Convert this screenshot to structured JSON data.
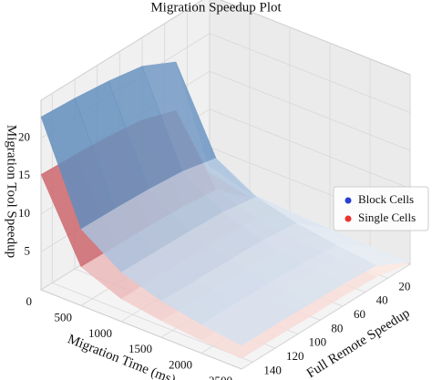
{
  "chart_data": {
    "type": "surface3d",
    "title": "Migration Speedup Plot",
    "x_label": "Migration Time (ms)",
    "y_label": "Full Remote Speedup",
    "z_label": "Migration Tool Speedup",
    "x": [
      0,
      500,
      1000,
      1500,
      2000,
      2500
    ],
    "y": [
      1,
      30,
      60,
      90,
      120,
      150
    ],
    "xlim": [
      0,
      2500
    ],
    "ylim": [
      0,
      150
    ],
    "zlim": [
      0,
      25
    ],
    "xticks": [
      0,
      500,
      1000,
      1500,
      2000,
      2500
    ],
    "yticks": [
      20,
      40,
      60,
      80,
      100,
      120,
      140
    ],
    "zticks": [
      5,
      10,
      15,
      20
    ],
    "grid": true,
    "legend": "right",
    "series": [
      {
        "name": "Single Cells",
        "color": "#e8342c",
        "colormap": [
          "#fff0ea",
          "#b3202c"
        ],
        "z": [
          [
            1.8,
            12.6,
            14.1,
            14.7,
            15.0,
            15.2
          ],
          [
            0.6,
            4.2,
            4.7,
            4.9,
            5.0,
            5.1
          ],
          [
            0.4,
            2.5,
            2.8,
            2.9,
            3.0,
            3.0
          ],
          [
            0.3,
            1.8,
            2.0,
            2.1,
            2.1,
            2.2
          ],
          [
            0.2,
            1.4,
            1.6,
            1.6,
            1.7,
            1.7
          ],
          [
            0.2,
            1.1,
            1.3,
            1.3,
            1.4,
            1.4
          ]
        ]
      },
      {
        "name": "Block Cells",
        "color": "#2a3fd0",
        "colormap": [
          "#f3f8fd",
          "#2a64a4"
        ],
        "z": [
          [
            2.7,
            19.0,
            21.2,
            22.0,
            22.5,
            22.8
          ],
          [
            1.2,
            8.4,
            9.4,
            9.8,
            10.0,
            10.1
          ],
          [
            0.8,
            5.4,
            6.1,
            6.3,
            6.4,
            6.5
          ],
          [
            0.6,
            4.0,
            4.5,
            4.6,
            4.7,
            4.8
          ],
          [
            0.4,
            3.2,
            3.5,
            3.7,
            3.8,
            3.8
          ],
          [
            0.4,
            2.6,
            2.9,
            3.0,
            3.1,
            3.1
          ]
        ]
      }
    ]
  }
}
